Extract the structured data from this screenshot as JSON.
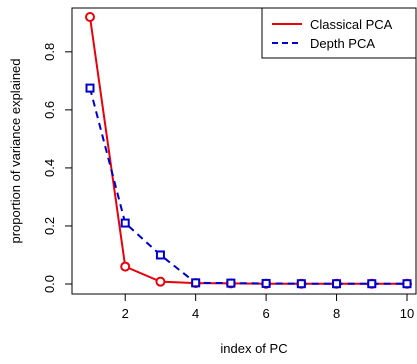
{
  "chart_data": {
    "type": "line",
    "title": "",
    "xlabel": "index of PC",
    "ylabel": "proportion of variance explained",
    "x": [
      1,
      2,
      3,
      4,
      5,
      6,
      7,
      8,
      9,
      10
    ],
    "xlim": [
      1,
      10
    ],
    "ylim": [
      0,
      0.92
    ],
    "xticks": [
      2,
      4,
      6,
      8,
      10
    ],
    "yticks": [
      0.0,
      0.2,
      0.4,
      0.6,
      0.8
    ],
    "xtick_labels": [
      "2",
      "4",
      "6",
      "8",
      "10"
    ],
    "ytick_labels": [
      "0.0",
      "0.2",
      "0.4",
      "0.6",
      "0.8"
    ],
    "grid": false,
    "legend_position": "top-right",
    "series": [
      {
        "name": "Classical PCA",
        "color": "#e8000b",
        "line_style": "solid",
        "marker": "circle",
        "values": [
          0.92,
          0.06,
          0.008,
          0.003,
          0.002,
          0.001,
          0.001,
          0.001,
          0.001,
          0.001
        ]
      },
      {
        "name": "Depth PCA",
        "color": "#0000cc",
        "line_style": "dashed",
        "marker": "square",
        "values": [
          0.675,
          0.21,
          0.1,
          0.004,
          0.003,
          0.002,
          0.001,
          0.001,
          0.001,
          0.001
        ]
      }
    ]
  }
}
